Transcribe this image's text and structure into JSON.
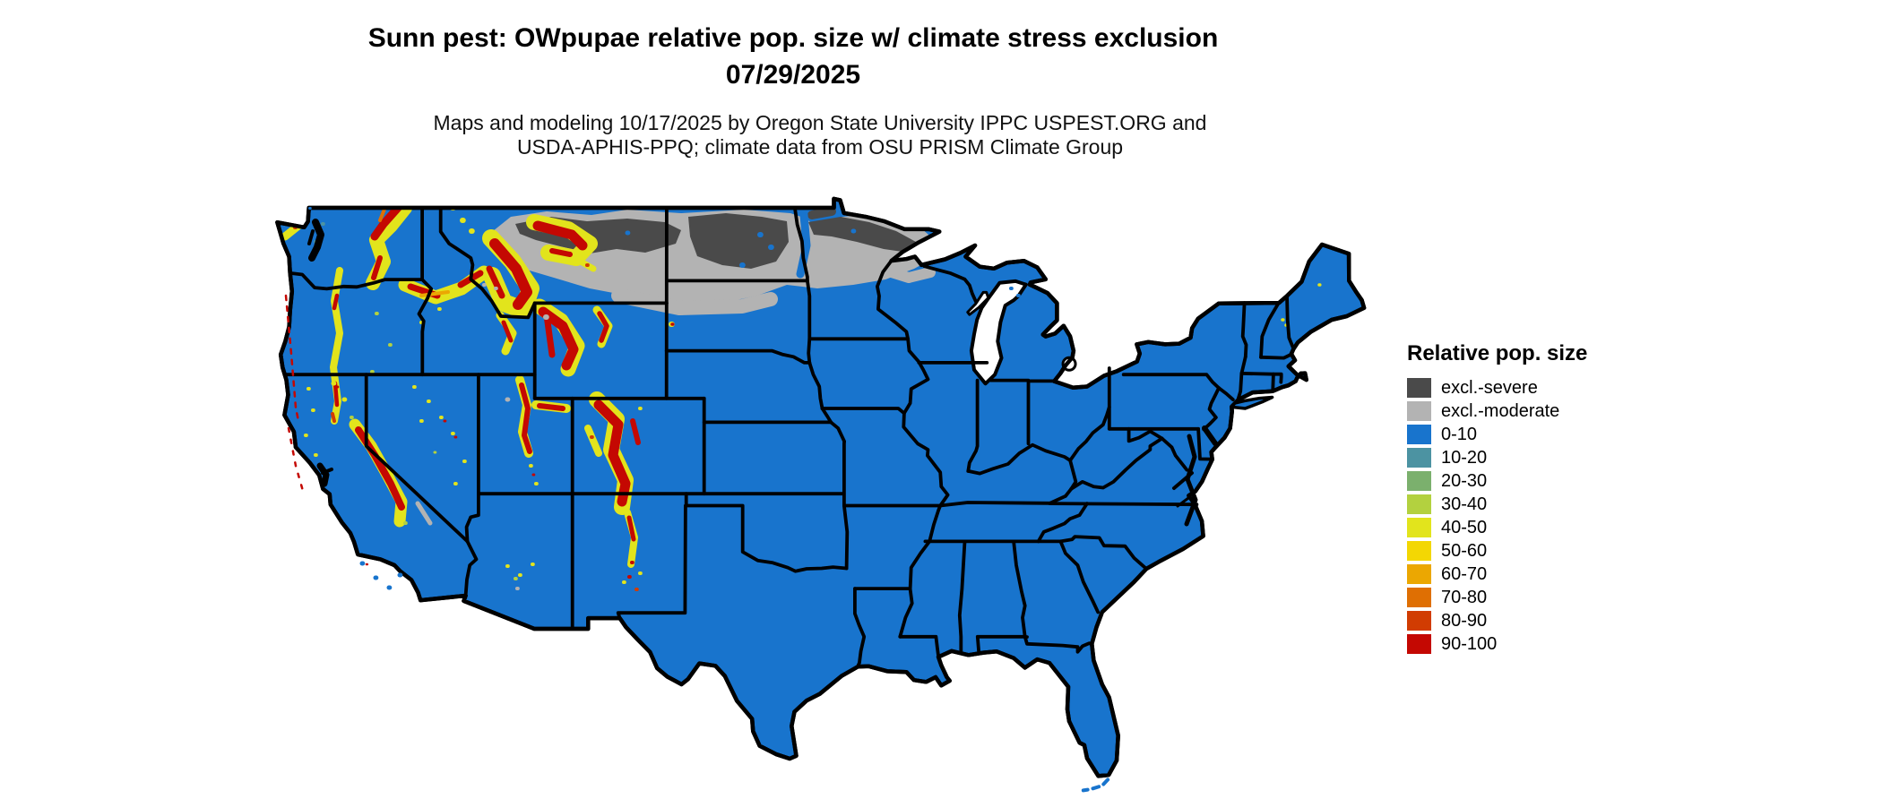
{
  "figure": {
    "title_line1": "Sunn pest: OWpupae relative pop. size w/ climate stress exclusion",
    "title_line2": "07/29/2025",
    "subtitle_line1": "Maps and modeling 10/17/2025 by Oregon State University IPPC USPEST.ORG and",
    "subtitle_line2": "USDA-APHIS-PPQ; climate data from OSU PRISM Climate Group"
  },
  "legend": {
    "title": "Relative pop. size",
    "entries": [
      {
        "label": "excl.-severe",
        "color": "#4a4a4a"
      },
      {
        "label": "excl.-moderate",
        "color": "#b3b3b3"
      },
      {
        "label": "0-10",
        "color": "#1874cd"
      },
      {
        "label": "10-20",
        "color": "#4c93a2"
      },
      {
        "label": "20-30",
        "color": "#7bb06d"
      },
      {
        "label": "30-40",
        "color": "#b3d13f"
      },
      {
        "label": "40-50",
        "color": "#e2e41c"
      },
      {
        "label": "50-60",
        "color": "#f3d703"
      },
      {
        "label": "60-70",
        "color": "#eba702"
      },
      {
        "label": "70-80",
        "color": "#df6f03"
      },
      {
        "label": "80-90",
        "color": "#d13c02"
      },
      {
        "label": "90-100",
        "color": "#c40802"
      }
    ]
  },
  "map": {
    "region": "Continental United States",
    "base_class_label": "0-10",
    "water_color": "#ffffff",
    "boundary_color": "#000000"
  }
}
